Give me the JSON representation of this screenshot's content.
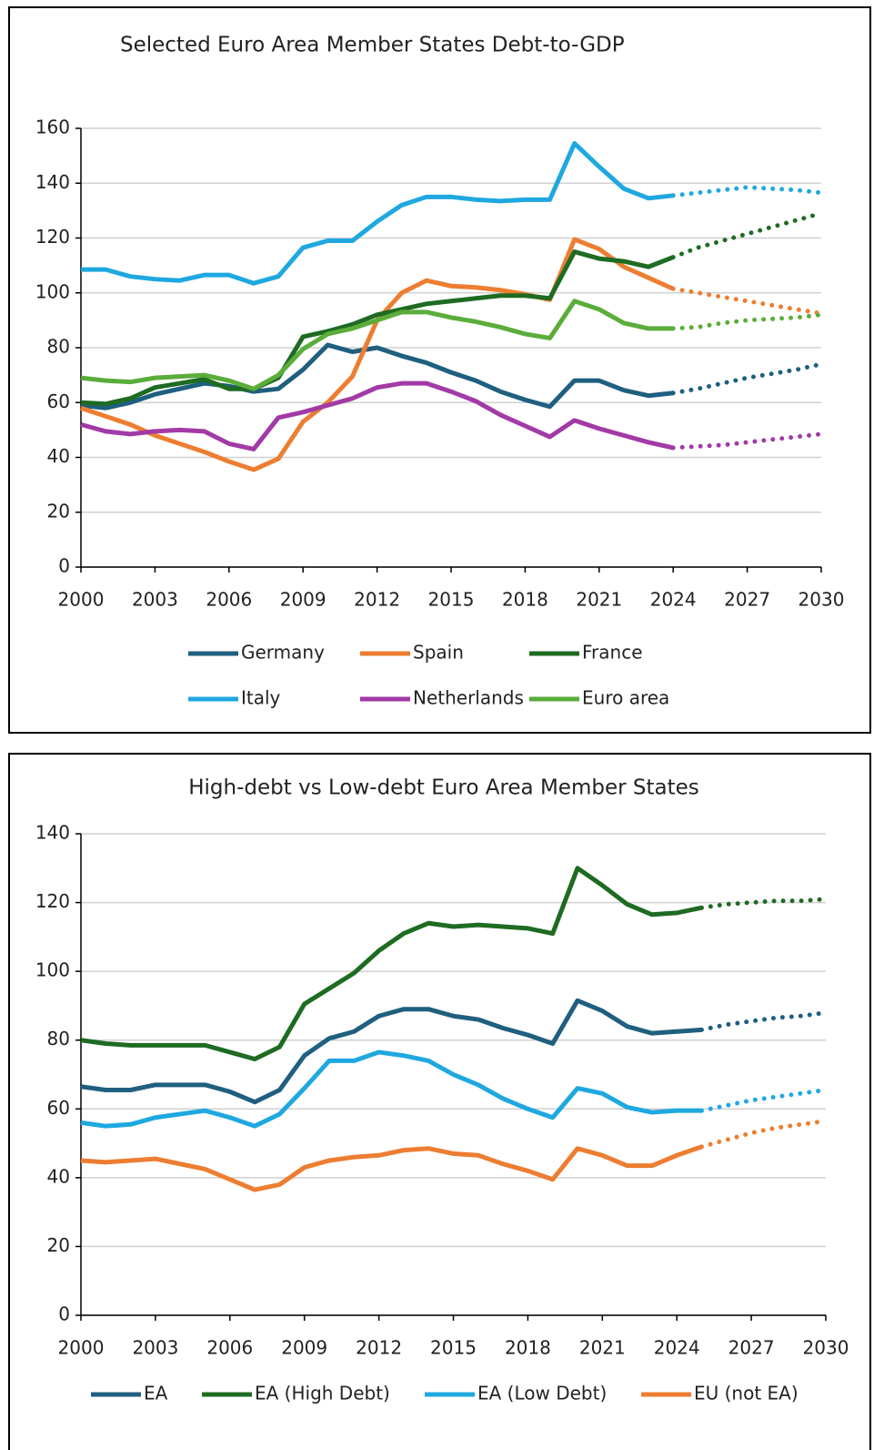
{
  "chart_data": [
    {
      "type": "line",
      "title": "Selected Euro Area Member States Debt-to-GDP",
      "x": [
        2000,
        2001,
        2002,
        2003,
        2004,
        2005,
        2006,
        2007,
        2008,
        2009,
        2010,
        2011,
        2012,
        2013,
        2014,
        2015,
        2016,
        2017,
        2018,
        2019,
        2020,
        2021,
        2022,
        2023,
        2024,
        2025,
        2026,
        2027,
        2028,
        2029,
        2030
      ],
      "xlim": [
        2000,
        2030
      ],
      "xticks": [
        2000,
        2003,
        2006,
        2009,
        2012,
        2015,
        2018,
        2021,
        2024,
        2027,
        2030
      ],
      "ylim": [
        0,
        160
      ],
      "yticks": [
        0,
        20,
        40,
        60,
        80,
        100,
        120,
        140,
        160
      ],
      "grid": true,
      "dotted_after": 2024,
      "series": [
        {
          "name": "Germany",
          "color": "#1f5f7f",
          "values": [
            59,
            58,
            60,
            63,
            65,
            67,
            66,
            64,
            65,
            72,
            81,
            78.5,
            80,
            77,
            74.5,
            71,
            68,
            64,
            61,
            58.5,
            68,
            68,
            64.5,
            62.5,
            63.5,
            65,
            67,
            69,
            70.5,
            72,
            74
          ]
        },
        {
          "name": "Spain",
          "color": "#ed7d31",
          "values": [
            58,
            55,
            52,
            48,
            45,
            42,
            38.5,
            35.5,
            39.5,
            53,
            60,
            69.5,
            90,
            100,
            104.5,
            102.5,
            102,
            101,
            99.5,
            97.5,
            119.5,
            116,
            109.5,
            105.5,
            101.5,
            100,
            98.5,
            97,
            95.5,
            94,
            92.5
          ]
        },
        {
          "name": "France",
          "color": "#1e6b22",
          "values": [
            60,
            59.5,
            61.5,
            65.5,
            67,
            68.5,
            65,
            65,
            69,
            84,
            86,
            88.5,
            92,
            94,
            96,
            97,
            98,
            99,
            99,
            98,
            115,
            112.5,
            111.5,
            109.5,
            113,
            116.5,
            119,
            121.5,
            124,
            126.5,
            129
          ]
        },
        {
          "name": "Italy",
          "color": "#1fa8e0",
          "values": [
            108.5,
            108.5,
            106,
            105,
            104.5,
            106.5,
            106.5,
            103.5,
            106,
            116.5,
            119,
            119,
            126,
            132,
            135,
            135,
            134,
            133.5,
            134,
            134,
            154.5,
            146,
            138,
            134.5,
            135.5,
            136.5,
            137.5,
            138.5,
            138,
            137.5,
            136.5
          ]
        },
        {
          "name": "Netherlands",
          "color": "#a23aa6",
          "values": [
            52,
            49.5,
            48.5,
            49.5,
            50,
            49.5,
            45,
            43,
            54.5,
            56.5,
            59,
            61.5,
            65.5,
            67,
            67,
            64,
            60.5,
            55.5,
            51.5,
            47.5,
            53.5,
            50.5,
            48,
            45.5,
            43.5,
            44,
            44.5,
            45.5,
            46.5,
            47.5,
            48.5
          ]
        },
        {
          "name": "Euro area",
          "color": "#5aad3a",
          "values": [
            69,
            68,
            67.5,
            69,
            69.5,
            70,
            68,
            65,
            70,
            79.5,
            85,
            87,
            90,
            93,
            93,
            91,
            89.5,
            87.5,
            85,
            83.5,
            97,
            94,
            89,
            87,
            87,
            87.5,
            89,
            90,
            90.5,
            91,
            92
          ]
        }
      ]
    },
    {
      "type": "line",
      "title": "High-debt vs Low-debt Euro Area Member States",
      "x": [
        2000,
        2001,
        2002,
        2003,
        2004,
        2005,
        2006,
        2007,
        2008,
        2009,
        2010,
        2011,
        2012,
        2013,
        2014,
        2015,
        2016,
        2017,
        2018,
        2019,
        2020,
        2021,
        2022,
        2023,
        2024,
        2025,
        2026,
        2027,
        2028,
        2029,
        2030
      ],
      "xlim": [
        2000,
        2030
      ],
      "xticks": [
        2000,
        2003,
        2006,
        2009,
        2012,
        2015,
        2018,
        2021,
        2024,
        2027,
        2030
      ],
      "ylim": [
        0,
        140
      ],
      "yticks": [
        0,
        20,
        40,
        60,
        80,
        100,
        120,
        140
      ],
      "grid": true,
      "dotted_after": 2025,
      "series": [
        {
          "name": "EA",
          "color": "#1f5f7f",
          "values": [
            66.5,
            65.5,
            65.5,
            67,
            67,
            67,
            65,
            62,
            65.5,
            75.5,
            80.5,
            82.5,
            87,
            89,
            89,
            87,
            86,
            83.5,
            81.5,
            79,
            91.5,
            88.5,
            84,
            82,
            82.5,
            83,
            84.5,
            85.5,
            86.5,
            87,
            88
          ]
        },
        {
          "name": "EA (High Debt)",
          "color": "#1e6b22",
          "values": [
            80,
            79,
            78.5,
            78.5,
            78.5,
            78.5,
            76.5,
            74.5,
            78,
            90.5,
            95,
            99.5,
            106,
            111,
            114,
            113,
            113.5,
            113,
            112.5,
            111,
            130,
            125,
            119.5,
            116.5,
            117,
            118.5,
            119.5,
            120,
            120.5,
            120.5,
            121
          ]
        },
        {
          "name": "EA (Low Debt)",
          "color": "#1fa8e0",
          "values": [
            56,
            55,
            55.5,
            57.5,
            58.5,
            59.5,
            57.5,
            55,
            58.5,
            66,
            74,
            74,
            76.5,
            75.5,
            74,
            70,
            67,
            63,
            60,
            57.5,
            66,
            64.5,
            60.5,
            59,
            59.5,
            59.5,
            61,
            62.5,
            63.5,
            64.5,
            65.5
          ]
        },
        {
          "name": "EU (not EA)",
          "color": "#ed7d31",
          "values": [
            45,
            44.5,
            45,
            45.5,
            44,
            42.5,
            39.5,
            36.5,
            38,
            43,
            45,
            46,
            46.5,
            48,
            48.5,
            47,
            46.5,
            44,
            42,
            39.5,
            48.5,
            46.5,
            43.5,
            43.5,
            46.5,
            49,
            51,
            53,
            54.5,
            55.5,
            56.5
          ]
        }
      ]
    }
  ]
}
